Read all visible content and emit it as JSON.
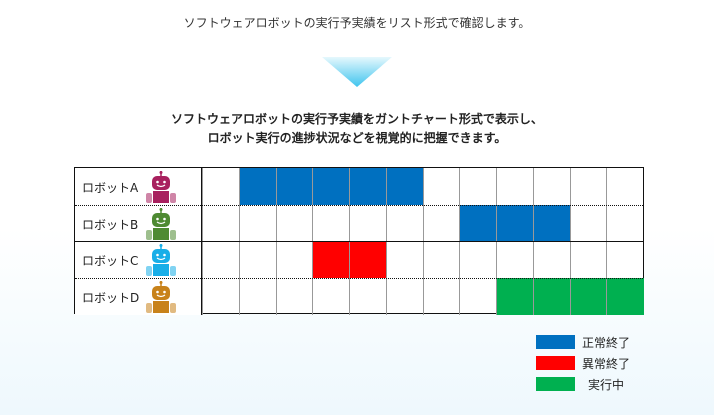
{
  "intro_text": "ソフトウェアロボットの実行予実績をリスト形式で確認します。",
  "description_lines": [
    "ソフトウェアロボットの実行予実績をガントチャート形式で表示し、",
    "ロボット実行の進捗状況などを視覚的に把握できます。"
  ],
  "columns": 12,
  "colors": {
    "normal": "#0070c0",
    "error": "#ff0000",
    "running": "#00b050"
  },
  "robots": [
    {
      "name": "ロボットA",
      "icon_color": "#a8205e",
      "bars": [
        {
          "start": 1,
          "end": 5,
          "status": "normal"
        }
      ]
    },
    {
      "name": "ロボットB",
      "icon_color": "#4e8a32",
      "bars": [
        {
          "start": 7,
          "end": 9,
          "status": "normal"
        }
      ]
    },
    {
      "name": "ロボットC",
      "icon_color": "#18aee8",
      "bars": [
        {
          "start": 3,
          "end": 4,
          "status": "error"
        }
      ]
    },
    {
      "name": "ロボットD",
      "icon_color": "#c8821a",
      "bars": [
        {
          "start": 8,
          "end": 11,
          "status": "running"
        }
      ]
    }
  ],
  "legend": [
    {
      "label": "正常終了",
      "status": "normal"
    },
    {
      "label": "異常終了",
      "status": "error"
    },
    {
      "label": "実行中",
      "status": "running"
    }
  ]
}
